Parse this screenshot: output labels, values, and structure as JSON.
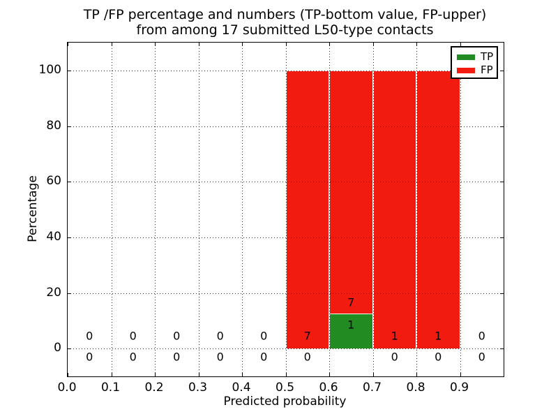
{
  "chart_data": {
    "type": "bar",
    "subtype": "stacked-percentage-histogram",
    "title": "TP /FP percentage and numbers (TP-bottom value, FP-upper)\nfrom among 17 submitted L50-type contacts",
    "title_line1": "TP /FP percentage and numbers (TP-bottom value, FP-upper)",
    "title_line2": "from among 17 submitted L50-type contacts",
    "xlabel": "Predicted probability",
    "ylabel": "Percentage",
    "total_contacts": 17,
    "xlim": [
      0.0,
      1.0
    ],
    "ylim": [
      -10,
      110
    ],
    "xtick_labels": [
      "0.0",
      "0.1",
      "0.2",
      "0.3",
      "0.4",
      "0.5",
      "0.6",
      "0.7",
      "0.8",
      "0.9"
    ],
    "xtick_values": [
      0.0,
      0.1,
      0.2,
      0.3,
      0.4,
      0.5,
      0.6,
      0.7,
      0.8,
      0.9
    ],
    "ytick_values": [
      0,
      20,
      40,
      60,
      80,
      100
    ],
    "grid": "dotted",
    "bin_edges": [
      0.0,
      0.1,
      0.2,
      0.3,
      0.4,
      0.5,
      0.6,
      0.7,
      0.8,
      0.9,
      1.0
    ],
    "categories": [
      0.05,
      0.15,
      0.25,
      0.35,
      0.45,
      0.55,
      0.65,
      0.75,
      0.85,
      0.95
    ],
    "series": [
      {
        "name": "TP",
        "color": "#228b22",
        "values": [
          0,
          0,
          0,
          0,
          0,
          0,
          12.5,
          0,
          0,
          0
        ],
        "counts": [
          0,
          0,
          0,
          0,
          0,
          0,
          1,
          0,
          0,
          0
        ]
      },
      {
        "name": "FP",
        "color": "#f21b10",
        "values": [
          0,
          0,
          0,
          0,
          0,
          100,
          87.5,
          100,
          100,
          0
        ],
        "counts": [
          0,
          0,
          0,
          0,
          0,
          7,
          7,
          1,
          1,
          0
        ]
      }
    ],
    "legend": {
      "position": "upper right",
      "entries": [
        {
          "label": "TP",
          "color": "#228b22"
        },
        {
          "label": "FP",
          "color": "#f21b10"
        }
      ]
    },
    "colors": {
      "tp": "#228b22",
      "fp": "#f21b10",
      "bar_edge": "#ffffff",
      "text": "#000000",
      "background": "#ffffff"
    }
  }
}
